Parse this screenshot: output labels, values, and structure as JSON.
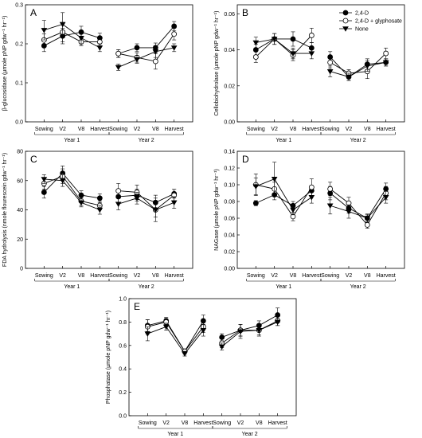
{
  "legend": {
    "entries": [
      {
        "label": "2,4-D",
        "marker": "filled-circle"
      },
      {
        "label": "2,4-D + glyphosate",
        "marker": "open-circle"
      },
      {
        "label": "None",
        "marker": "filled-triangle-down"
      }
    ]
  },
  "chart_data": [
    {
      "panel": "A",
      "type": "line",
      "ylabel": "β-glucosidase (µmole pNP gdw⁻¹ hr⁻¹)",
      "ylim": [
        0,
        0.3
      ],
      "yticks": [
        "0.0",
        "0.1",
        "0.2",
        "0.3"
      ],
      "categories": [
        "Sowing",
        "V2",
        "V8",
        "Harvest",
        "Sowing",
        "V2",
        "V8",
        "Harvest"
      ],
      "groups": [
        "Year 1",
        "Year 2"
      ],
      "series": [
        {
          "name": "2,4-D",
          "values": [
            0.195,
            0.22,
            0.23,
            0.215,
            0.175,
            0.19,
            0.19,
            0.245
          ],
          "errors": [
            0.015,
            0.02,
            0.015,
            0.012,
            0.01,
            0.01,
            0.012,
            0.012
          ]
        },
        {
          "name": "2,4-D + glyphosate",
          "values": [
            0.21,
            0.23,
            0.205,
            0.205,
            0.175,
            0.165,
            0.155,
            0.225
          ],
          "errors": [
            0.015,
            0.025,
            0.01,
            0.01,
            0.01,
            0.012,
            0.02,
            0.015
          ]
        },
        {
          "name": "None",
          "values": [
            0.235,
            0.25,
            0.215,
            0.19,
            0.14,
            0.16,
            0.18,
            0.19
          ],
          "errors": [
            0.025,
            0.03,
            0.015,
            0.01,
            0.008,
            0.01,
            0.015,
            0.01
          ]
        }
      ]
    },
    {
      "panel": "B",
      "type": "line",
      "ylabel": "Cellobiohydrolase (µmole pNP gdw⁻¹ hr⁻¹)",
      "ylim": [
        0,
        0.065
      ],
      "yticks": [
        "0.00",
        "0.02",
        "0.04",
        "0.06"
      ],
      "categories": [
        "Sowing",
        "V2",
        "V8",
        "Harvest",
        "Sowing",
        "V2",
        "V8",
        "Harvest"
      ],
      "groups": [
        "Year 1",
        "Year 2"
      ],
      "series": [
        {
          "name": "2,4-D",
          "values": [
            0.04,
            0.046,
            0.046,
            0.041,
            0.036,
            0.025,
            0.032,
            0.033
          ],
          "errors": [
            0.003,
            0.003,
            0.004,
            0.003,
            0.003,
            0.002,
            0.003,
            0.002
          ]
        },
        {
          "name": "2,4-D + glyphosate",
          "values": [
            0.036,
            0.046,
            0.037,
            0.048,
            0.033,
            0.027,
            0.028,
            0.038
          ],
          "errors": [
            0.003,
            0.003,
            0.003,
            0.004,
            0.003,
            0.002,
            0.004,
            0.003
          ]
        },
        {
          "name": "None",
          "values": [
            0.044,
            0.046,
            0.038,
            0.038,
            0.028,
            0.025,
            0.031,
            0.033
          ],
          "errors": [
            0.003,
            0.003,
            0.003,
            0.003,
            0.003,
            0.002,
            0.003,
            0.002
          ]
        }
      ]
    },
    {
      "panel": "C",
      "type": "line",
      "ylabel": "FDA hydrolysis (nmole flourescein gdw⁻¹ hr⁻¹)",
      "ylim": [
        0,
        80
      ],
      "yticks": [
        "0",
        "20",
        "40",
        "60",
        "80"
      ],
      "categories": [
        "Sowing",
        "V2",
        "V8",
        "Harvest",
        "Sowing",
        "V2",
        "V8",
        "Harvest"
      ],
      "groups": [
        "Year 1",
        "Year 2"
      ],
      "series": [
        {
          "name": "2,4-D",
          "values": [
            52,
            65,
            50,
            48,
            49,
            50,
            45,
            51
          ],
          "errors": [
            4,
            5,
            3,
            3,
            4,
            4,
            5,
            3
          ]
        },
        {
          "name": "2,4-D + glyphosate",
          "values": [
            58,
            63,
            46,
            43,
            53,
            52,
            40,
            50
          ],
          "errors": [
            4,
            5,
            3,
            3,
            5,
            5,
            8,
            4
          ]
        },
        {
          "name": "None",
          "values": [
            61,
            60,
            45,
            40,
            44,
            48,
            40,
            45
          ],
          "errors": [
            3,
            4,
            3,
            3,
            4,
            4,
            5,
            4
          ]
        }
      ]
    },
    {
      "panel": "D",
      "type": "line",
      "ylabel": "NAGase (µmole pNP gdw⁻¹ hr⁻¹)",
      "ylim": [
        0,
        0.14
      ],
      "yticks": [
        "0.00",
        "0.02",
        "0.04",
        "0.06",
        "0.08",
        "0.10",
        "0.12",
        "0.14"
      ],
      "categories": [
        "Sowing",
        "V2",
        "V8",
        "Harvest",
        "Sowing",
        "V2",
        "V8",
        "Harvest"
      ],
      "groups": [
        "Year 1",
        "Year 2"
      ],
      "series": [
        {
          "name": "2,4-D",
          "values": [
            0.078,
            0.088,
            0.075,
            0.093,
            0.09,
            0.072,
            0.06,
            0.095
          ],
          "errors": [
            0.003,
            0.006,
            0.005,
            0.006,
            0.008,
            0.006,
            0.004,
            0.007
          ]
        },
        {
          "name": "2,4-D + glyphosate",
          "values": [
            0.1,
            0.095,
            0.062,
            0.097,
            0.095,
            0.078,
            0.052,
            0.09
          ],
          "errors": [
            0.013,
            0.008,
            0.005,
            0.01,
            0.008,
            0.007,
            0.004,
            0.008
          ]
        },
        {
          "name": "None",
          "values": [
            0.098,
            0.107,
            0.07,
            0.085,
            0.075,
            0.068,
            0.06,
            0.085
          ],
          "errors": [
            0.01,
            0.02,
            0.006,
            0.007,
            0.01,
            0.008,
            0.005,
            0.007
          ]
        }
      ]
    },
    {
      "panel": "E",
      "type": "line",
      "ylabel": "Phosphatase (µmole pNP gdw⁻¹ hr⁻¹)",
      "ylim": [
        0,
        1.0
      ],
      "yticks": [
        "0.0",
        "0.2",
        "0.4",
        "0.6",
        "0.8",
        "1.0"
      ],
      "categories": [
        "Sowing",
        "V2",
        "V8",
        "Harvest",
        "Sowing",
        "V2",
        "V8",
        "Harvest"
      ],
      "groups": [
        "Year 1",
        "Year 2"
      ],
      "series": [
        {
          "name": "2,4-D",
          "values": [
            0.77,
            0.81,
            0.55,
            0.81,
            0.67,
            0.73,
            0.77,
            0.86
          ],
          "errors": [
            0.05,
            0.03,
            0.02,
            0.05,
            0.03,
            0.05,
            0.04,
            0.06
          ]
        },
        {
          "name": "2,4-D + glyphosate",
          "values": [
            0.76,
            0.8,
            0.55,
            0.76,
            0.62,
            0.73,
            0.73,
            0.81
          ],
          "errors": [
            0.06,
            0.03,
            0.02,
            0.05,
            0.04,
            0.05,
            0.04,
            0.04
          ]
        },
        {
          "name": "None",
          "values": [
            0.7,
            0.76,
            0.53,
            0.73,
            0.59,
            0.72,
            0.73,
            0.8
          ],
          "errors": [
            0.06,
            0.03,
            0.02,
            0.05,
            0.03,
            0.06,
            0.05,
            0.03
          ]
        }
      ]
    }
  ]
}
